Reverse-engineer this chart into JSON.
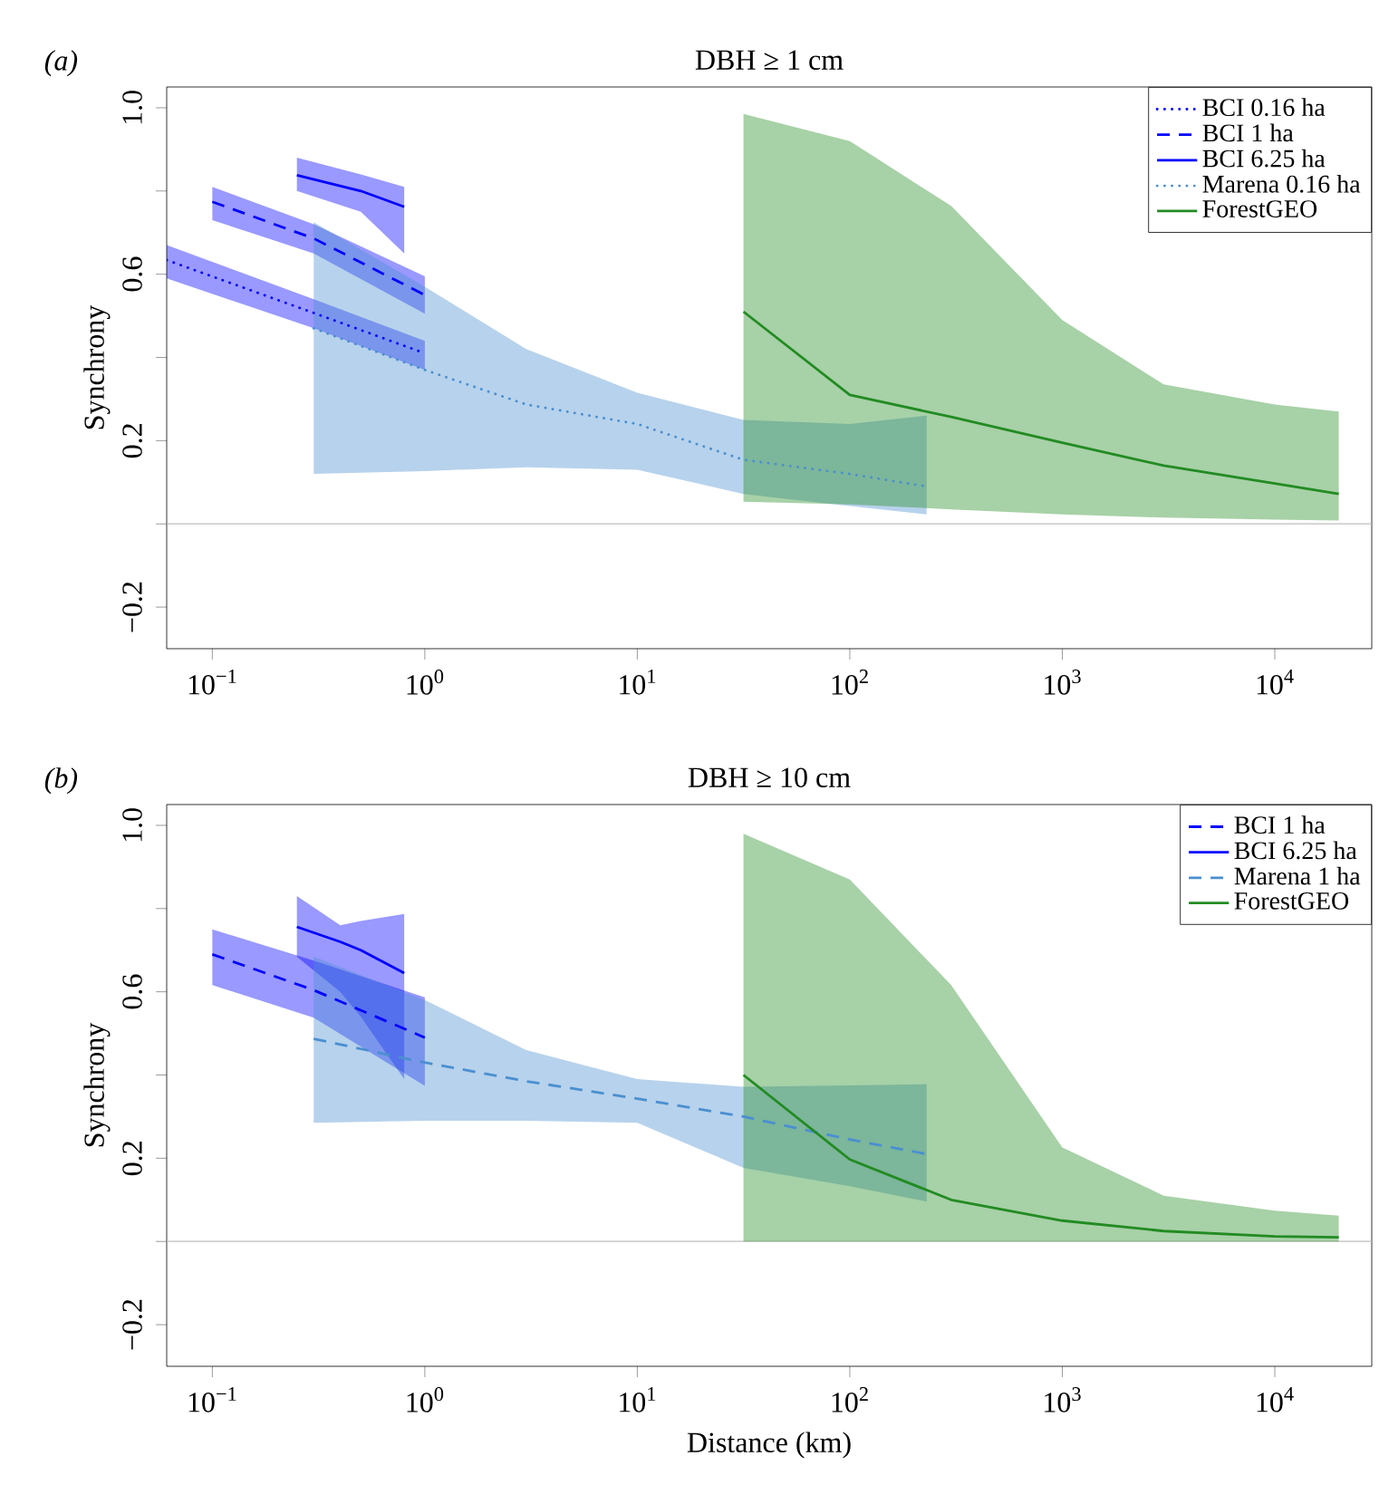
{
  "chart_data": [
    {
      "type": "line",
      "title": "DBH ≥ 1 cm",
      "ylabel": "Synchrony",
      "annotations": [
        "(a)"
      ],
      "log": "x",
      "legend": "top right",
      "xlim": [
        0.061,
        28600
      ],
      "ylim": [
        -0.3,
        1.05
      ],
      "xticks": [
        {
          "value": 0.1,
          "label": "10$^{−1}$"
        },
        {
          "value": 1,
          "label": "10$^{0}$"
        },
        {
          "value": 10,
          "label": "10$^{1}$"
        },
        {
          "value": 100,
          "label": "10$^{2}$"
        },
        {
          "value": 1000,
          "label": "10$^{3}$"
        },
        {
          "value": 10000,
          "label": "10$^{4}$"
        }
      ],
      "yticks": [
        {
          "value": -0.2,
          "label": "−0.2"
        },
        {
          "value": 0,
          "label": null
        },
        {
          "value": 0.2,
          "label": "0.2"
        },
        {
          "value": 0.4,
          "label": null
        },
        {
          "value": 0.6,
          "label": "0.6"
        },
        {
          "value": 0.8,
          "label": null
        },
        {
          "value": 1.0,
          "label": "1.0"
        }
      ],
      "ref_lines": [
        {
          "axis": "y",
          "value": 0,
          "color": "#bebebe"
        }
      ],
      "series": [
        {
          "name": "BCI 0.16 ha",
          "color": "#0000ff",
          "line_style": "dotted",
          "x": [
            0.061,
            0.3,
            1
          ],
          "values": [
            0.634,
            0.507,
            0.41
          ],
          "lower": [
            0.59,
            0.47,
            0.37
          ],
          "upper": [
            0.67,
            0.54,
            0.44
          ]
        },
        {
          "name": "BCI 1 ha",
          "color": "#0000ff",
          "line_style": "dashed",
          "x": [
            0.1,
            0.3,
            1
          ],
          "values": [
            0.774,
            0.686,
            0.55
          ],
          "lower": [
            0.73,
            0.65,
            0.505
          ],
          "upper": [
            0.81,
            0.72,
            0.595
          ]
        },
        {
          "name": "BCI 6.25 ha",
          "color": "#0000ff",
          "line_style": "solid",
          "x": [
            0.25,
            0.5,
            0.8
          ],
          "values": [
            0.838,
            0.8,
            0.762
          ],
          "lower": [
            0.8,
            0.75,
            0.65
          ],
          "upper": [
            0.88,
            0.84,
            0.81
          ]
        },
        {
          "name": "Marena 0.16 ha",
          "color": "#4a8fd0",
          "line_style": "dotted",
          "x": [
            0.3,
            1,
            3,
            10,
            31.6,
            100,
            230
          ],
          "values": [
            0.47,
            0.37,
            0.287,
            0.24,
            0.154,
            0.12,
            0.09
          ],
          "lower": [
            0.12,
            0.127,
            0.136,
            0.13,
            0.072,
            0.043,
            0.023
          ],
          "upper": [
            0.725,
            0.57,
            0.42,
            0.315,
            0.25,
            0.24,
            0.26
          ]
        },
        {
          "name": "ForestGEO",
          "color": "#228b22",
          "line_style": "solid",
          "x": [
            31.6,
            100,
            300,
            1000,
            3000,
            10000,
            20000
          ],
          "values": [
            0.51,
            0.31,
            0.257,
            0.195,
            0.14,
            0.097,
            0.072
          ],
          "lower": [
            0.053,
            0.047,
            0.035,
            0.023,
            0.015,
            0.01,
            0.008
          ],
          "upper": [
            0.985,
            0.92,
            0.764,
            0.49,
            0.335,
            0.287,
            0.27
          ]
        }
      ]
    },
    {
      "type": "line",
      "title": "DBH ≥ 10 cm",
      "xlabel": "Distance (km)",
      "ylabel": "Synchrony",
      "annotations": [
        "(b)"
      ],
      "log": "x",
      "legend": "top right",
      "xlim": [
        0.061,
        28600
      ],
      "ylim": [
        -0.3,
        1.05
      ],
      "xticks": [
        {
          "value": 0.1,
          "label": "10$^{−1}$"
        },
        {
          "value": 1,
          "label": "10$^{0}$"
        },
        {
          "value": 10,
          "label": "10$^{1}$"
        },
        {
          "value": 100,
          "label": "10$^{2}$"
        },
        {
          "value": 1000,
          "label": "10$^{3}$"
        },
        {
          "value": 10000,
          "label": "10$^{4}$"
        }
      ],
      "yticks": [
        {
          "value": -0.2,
          "label": "−0.2"
        },
        {
          "value": 0,
          "label": null
        },
        {
          "value": 0.2,
          "label": "0.2"
        },
        {
          "value": 0.4,
          "label": null
        },
        {
          "value": 0.6,
          "label": "0.6"
        },
        {
          "value": 0.8,
          "label": null
        },
        {
          "value": 1.0,
          "label": "1.0"
        }
      ],
      "ref_lines": [
        {
          "axis": "y",
          "value": 0,
          "color": "#bebebe"
        }
      ],
      "series": [
        {
          "name": "BCI 1 ha",
          "color": "#0000ff",
          "line_style": "dashed",
          "x": [
            0.1,
            0.3,
            1
          ],
          "values": [
            0.69,
            0.604,
            0.49
          ],
          "lower": [
            0.616,
            0.538,
            0.374
          ],
          "upper": [
            0.75,
            0.675,
            0.587
          ]
        },
        {
          "name": "BCI 6.25 ha",
          "color": "#0000ff",
          "line_style": "solid",
          "x": [
            0.25,
            0.4,
            0.5,
            0.8
          ],
          "values": [
            0.756,
            0.72,
            0.7,
            0.645
          ],
          "lower": [
            0.684,
            0.6,
            0.54,
            0.39
          ],
          "upper": [
            0.83,
            0.76,
            0.77,
            0.787
          ]
        },
        {
          "name": "Marena 1 ha",
          "color": "#4a8fd0",
          "line_style": "dashed",
          "x": [
            0.3,
            1,
            3,
            10,
            31.6,
            100,
            230
          ],
          "values": [
            0.487,
            0.43,
            0.385,
            0.343,
            0.3,
            0.245,
            0.21
          ],
          "lower": [
            0.285,
            0.29,
            0.29,
            0.285,
            0.177,
            0.133,
            0.096
          ],
          "upper": [
            0.684,
            0.58,
            0.46,
            0.39,
            0.372,
            0.375,
            0.378
          ]
        },
        {
          "name": "ForestGEO",
          "color": "#228b22",
          "line_style": "solid",
          "x": [
            31.6,
            100,
            300,
            1000,
            3000,
            10000,
            20000
          ],
          "values": [
            0.4,
            0.197,
            0.1,
            0.05,
            0.025,
            0.012,
            0.01
          ],
          "lower": [
            0,
            0,
            0,
            0,
            0,
            0,
            0
          ],
          "upper": [
            0.98,
            0.87,
            0.616,
            0.226,
            0.11,
            0.074,
            0.062
          ]
        }
      ]
    }
  ]
}
